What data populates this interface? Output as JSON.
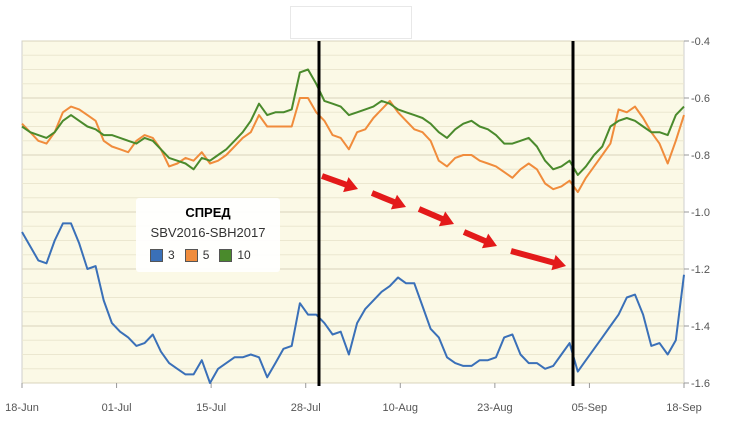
{
  "chart_data": {
    "type": "line",
    "title": "СПРЕД",
    "subtitle": "SBV2016-SBH2017",
    "xlabel": "",
    "ylabel": "",
    "x_tick_labels": [
      "18-Jun",
      "01-Jul",
      "15-Jul",
      "28-Jul",
      "10-Aug",
      "23-Aug",
      "05-Sep",
      "18-Sep"
    ],
    "y_tick_labels": [
      "-0.4",
      "-0.6",
      "-0.8",
      "-1.0",
      "-1.2",
      "-1.4",
      "-1.6"
    ],
    "ylim": [
      -1.6,
      -0.4
    ],
    "y_axis_side": "right",
    "grid": true,
    "legend_position": "left-middle",
    "series": [
      {
        "name": "3",
        "color": "#3a70b8",
        "values": [
          -1.07,
          -1.12,
          -1.17,
          -1.18,
          -1.1,
          -1.04,
          -1.04,
          -1.11,
          -1.2,
          -1.19,
          -1.31,
          -1.39,
          -1.42,
          -1.44,
          -1.47,
          -1.46,
          -1.43,
          -1.49,
          -1.53,
          -1.55,
          -1.57,
          -1.57,
          -1.52,
          -1.6,
          -1.55,
          -1.53,
          -1.51,
          -1.51,
          -1.5,
          -1.51,
          -1.58,
          -1.53,
          -1.48,
          -1.47,
          -1.32,
          -1.36,
          -1.36,
          -1.39,
          -1.43,
          -1.42,
          -1.5,
          -1.39,
          -1.34,
          -1.31,
          -1.28,
          -1.26,
          -1.23,
          -1.25,
          -1.25,
          -1.33,
          -1.41,
          -1.44,
          -1.51,
          -1.53,
          -1.54,
          -1.54,
          -1.52,
          -1.52,
          -1.51,
          -1.44,
          -1.43,
          -1.5,
          -1.53,
          -1.53,
          -1.55,
          -1.54,
          -1.5,
          -1.46,
          -1.56,
          -1.52,
          -1.48,
          -1.44,
          -1.4,
          -1.36,
          -1.3,
          -1.29,
          -1.36,
          -1.47,
          -1.46,
          -1.5,
          -1.45,
          -1.22
        ]
      },
      {
        "name": "5",
        "color": "#f08c3c",
        "values": [
          -0.69,
          -0.72,
          -0.75,
          -0.76,
          -0.72,
          -0.65,
          -0.63,
          -0.64,
          -0.66,
          -0.68,
          -0.75,
          -0.77,
          -0.78,
          -0.79,
          -0.75,
          -0.73,
          -0.74,
          -0.78,
          -0.84,
          -0.83,
          -0.81,
          -0.82,
          -0.79,
          -0.83,
          -0.82,
          -0.8,
          -0.77,
          -0.74,
          -0.72,
          -0.66,
          -0.7,
          -0.7,
          -0.7,
          -0.7,
          -0.6,
          -0.6,
          -0.65,
          -0.68,
          -0.73,
          -0.74,
          -0.78,
          -0.72,
          -0.71,
          -0.67,
          -0.64,
          -0.61,
          -0.65,
          -0.68,
          -0.71,
          -0.72,
          -0.75,
          -0.82,
          -0.84,
          -0.81,
          -0.8,
          -0.8,
          -0.82,
          -0.83,
          -0.84,
          -0.86,
          -0.88,
          -0.85,
          -0.83,
          -0.85,
          -0.9,
          -0.92,
          -0.91,
          -0.89,
          -0.93,
          -0.88,
          -0.84,
          -0.8,
          -0.76,
          -0.64,
          -0.65,
          -0.63,
          -0.67,
          -0.72,
          -0.76,
          -0.83,
          -0.75,
          -0.66
        ]
      },
      {
        "name": "10",
        "color": "#4a8a2c",
        "values": [
          -0.7,
          -0.72,
          -0.73,
          -0.74,
          -0.72,
          -0.68,
          -0.66,
          -0.68,
          -0.7,
          -0.71,
          -0.73,
          -0.73,
          -0.74,
          -0.75,
          -0.76,
          -0.74,
          -0.75,
          -0.78,
          -0.81,
          -0.82,
          -0.83,
          -0.85,
          -0.81,
          -0.82,
          -0.8,
          -0.78,
          -0.75,
          -0.72,
          -0.68,
          -0.62,
          -0.66,
          -0.65,
          -0.65,
          -0.64,
          -0.51,
          -0.5,
          -0.55,
          -0.61,
          -0.62,
          -0.63,
          -0.66,
          -0.65,
          -0.64,
          -0.63,
          -0.61,
          -0.62,
          -0.64,
          -0.65,
          -0.66,
          -0.67,
          -0.69,
          -0.72,
          -0.74,
          -0.71,
          -0.69,
          -0.68,
          -0.7,
          -0.71,
          -0.73,
          -0.76,
          -0.76,
          -0.75,
          -0.74,
          -0.77,
          -0.82,
          -0.85,
          -0.84,
          -0.82,
          -0.87,
          -0.84,
          -0.8,
          -0.77,
          -0.7,
          -0.68,
          -0.67,
          -0.68,
          -0.7,
          -0.72,
          -0.72,
          -0.73,
          -0.66,
          -0.63
        ]
      }
    ]
  }
}
